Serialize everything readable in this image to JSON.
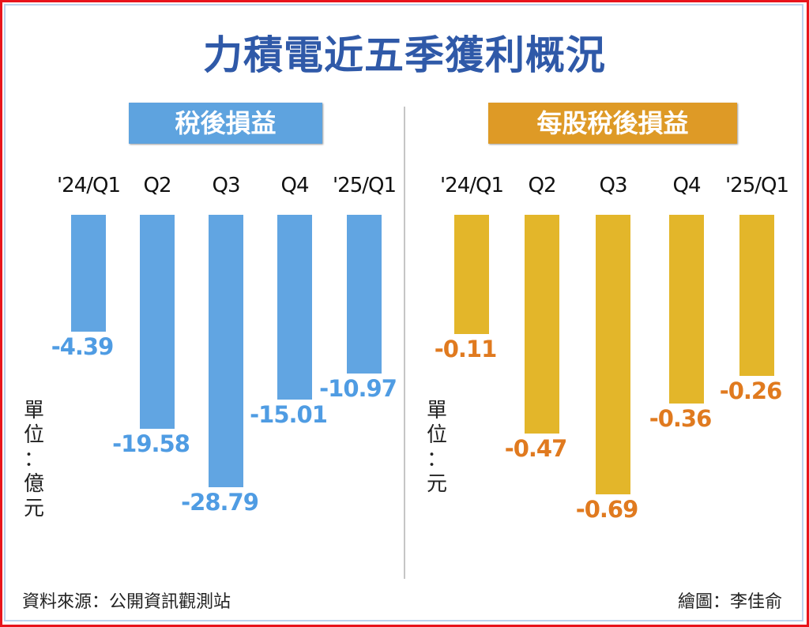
{
  "title": "力積電近五季獲利概況",
  "source": "資料來源：公開資訊觀測站",
  "credit": "繪圖：李佳俞",
  "chart_data": [
    {
      "type": "bar",
      "title": "稅後損益",
      "unit": "單位：億元",
      "categories": [
        "'24/Q1",
        "Q2",
        "Q3",
        "Q4",
        "'25/Q1"
      ],
      "values": [
        -4.39,
        -19.58,
        -28.79,
        -15.01,
        -10.97
      ],
      "labels": [
        "-4.39",
        "-19.58",
        "-28.79",
        "-15.01",
        "-10.97"
      ],
      "bar_color": "#61a5e2",
      "label_color": "#4f9ce3",
      "badge_color": "#5ea3df"
    },
    {
      "type": "bar",
      "title": "每股稅後損益",
      "unit": "單位：元",
      "categories": [
        "'24/Q1",
        "Q2",
        "Q3",
        "Q4",
        "'25/Q1"
      ],
      "values": [
        -0.11,
        -0.47,
        -0.69,
        -0.36,
        -0.26
      ],
      "labels": [
        "-0.11",
        "-0.47",
        "-0.69",
        "-0.36",
        "-0.26"
      ],
      "bar_color": "#e3b62a",
      "label_color": "#e07a1f",
      "badge_color": "#de9a26"
    }
  ]
}
